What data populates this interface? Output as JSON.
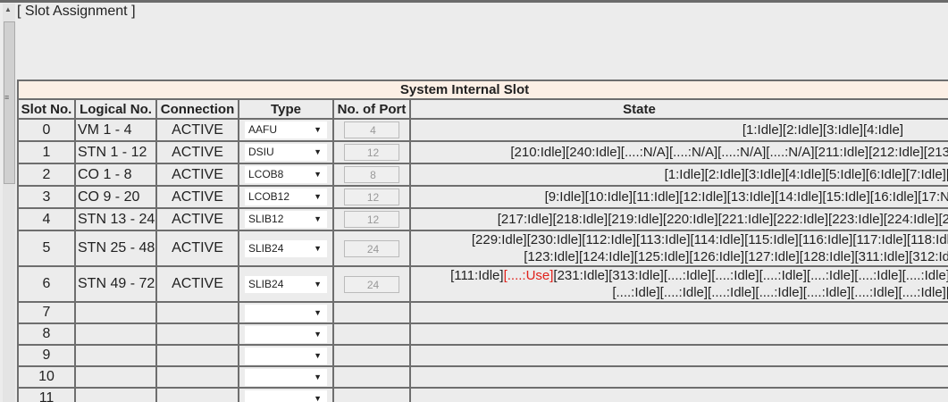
{
  "section_title": "[ Slot Assignment ]",
  "table": {
    "group_header": "System Internal Slot",
    "columns": [
      "Slot No.",
      "Logical No.",
      "Connection",
      "Type",
      "No. of Port",
      "State"
    ],
    "rows": [
      {
        "slot": "0",
        "logical": "VM 1 - 4",
        "connection": "ACTIVE",
        "type": "AAFU",
        "ports": "4",
        "state": [
          "[1:Idle][2:Idle][3:Idle][4:Idle]"
        ]
      },
      {
        "slot": "1",
        "logical": "STN 1 - 12",
        "connection": "ACTIVE",
        "type": "DSIU",
        "ports": "12",
        "state": [
          "[210:Idle][240:Idle][....:N/A][....:N/A][....:N/A][....:N/A][211:Idle][212:Idle][213"
        ]
      },
      {
        "slot": "2",
        "logical": "CO 1 - 8",
        "connection": "ACTIVE",
        "type": "LCOB8",
        "ports": "8",
        "state": [
          "[1:Idle][2:Idle][3:Idle][4:Idle][5:Idle][6:Idle][7:Idle]["
        ]
      },
      {
        "slot": "3",
        "logical": "CO 9 - 20",
        "connection": "ACTIVE",
        "type": "LCOB12",
        "ports": "12",
        "state": [
          "[9:Idle][10:Idle][11:Idle][12:Idle][13:Idle][14:Idle][15:Idle][16:Idle][17:N"
        ]
      },
      {
        "slot": "4",
        "logical": "STN 13 - 24",
        "connection": "ACTIVE",
        "type": "SLIB12",
        "ports": "12",
        "state": [
          "[217:Idle][218:Idle][219:Idle][220:Idle][221:Idle][222:Idle][223:Idle][224:Idle][2"
        ]
      },
      {
        "slot": "5",
        "logical": "STN 25 - 48",
        "connection": "ACTIVE",
        "type": "SLIB24",
        "ports": "24",
        "state": [
          "[229:Idle][230:Idle][112:Idle][113:Idle][114:Idle][115:Idle][116:Idle][117:Idle][118:Idl",
          "[123:Idle][124:Idle][125:Idle][126:Idle][127:Idle][128:Idle][311:Idle][312:Id"
        ]
      },
      {
        "slot": "6",
        "logical": "STN 49 - 72",
        "connection": "ACTIVE",
        "type": "SLIB24",
        "ports": "24",
        "state_line1": {
          "before": "[111:Idle]",
          "highlight": "[....:Use]",
          "after": "[231:Idle][313:Idle][....:Idle][....:Idle][....:Idle][....:Idle][....:Idle][....:Idle]"
        },
        "state": [
          "",
          "[....:Idle][....:Idle][....:Idle][....:Idle][....:Idle][....:Idle][....:Idle]["
        ]
      },
      {
        "slot": "7"
      },
      {
        "slot": "8"
      },
      {
        "slot": "9"
      },
      {
        "slot": "10"
      },
      {
        "slot": "11"
      }
    ]
  },
  "colors": {
    "header_bg": "#fcefe5",
    "in_use": "#e0201a",
    "border": "#6e6e6e"
  }
}
